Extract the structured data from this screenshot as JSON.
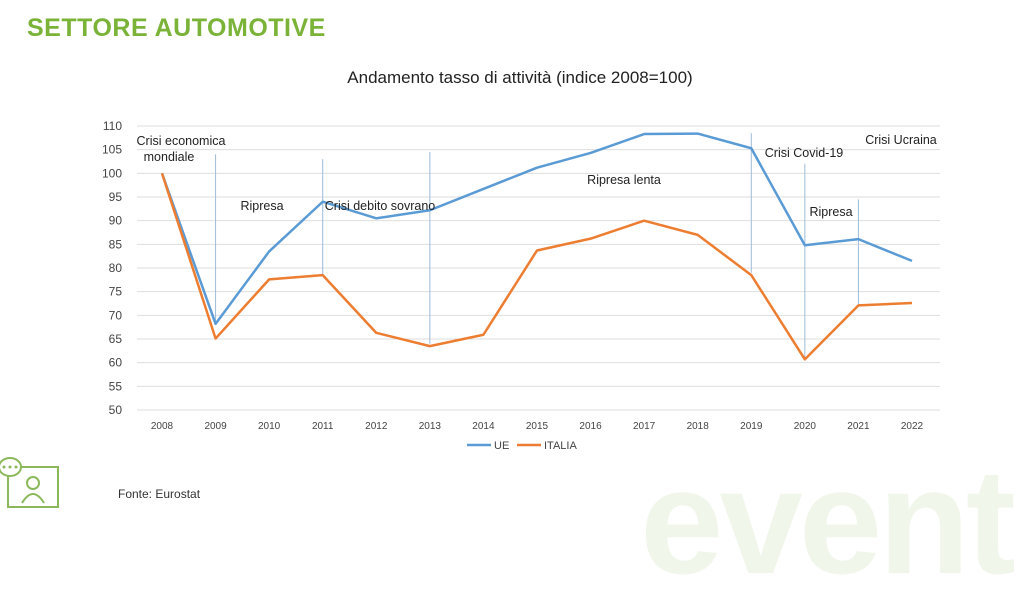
{
  "header": {
    "title": "SETTORE AUTOMOTIVE"
  },
  "watermark": "event",
  "source": "Fonte: Eurostat",
  "chart_data": {
    "type": "line",
    "title": "Andamento tasso di attività (indice 2008=100)",
    "xlabel": "",
    "ylabel": "",
    "categories": [
      "2008",
      "2009",
      "2010",
      "2011",
      "2012",
      "2013",
      "2014",
      "2015",
      "2016",
      "2017",
      "2018",
      "2019",
      "2020",
      "2021",
      "2022"
    ],
    "ylim": [
      50,
      110
    ],
    "yticks": [
      50,
      55,
      60,
      65,
      70,
      75,
      80,
      85,
      90,
      95,
      100,
      105,
      110
    ],
    "grid": true,
    "legend": "bottom",
    "series": [
      {
        "name": "UE",
        "color": "#5b9bd5",
        "values": [
          100,
          68.2,
          83.5,
          94,
          90.5,
          92.2,
          96.7,
          101.2,
          104.3,
          108.3,
          108.4,
          105.3,
          84.8,
          86.1,
          81.5
        ]
      },
      {
        "name": "ITALIA",
        "color": "#ed7d31",
        "values": [
          100,
          65.1,
          77.6,
          78.5,
          66.3,
          63.5,
          65.9,
          83.7,
          86.2,
          90,
          87,
          78.5,
          60.7,
          72.1,
          72.6
        ]
      }
    ],
    "annotations": [
      {
        "text": "Crisi economica",
        "text2": "mondiale",
        "year": "2008"
      },
      {
        "text": "Ripresa",
        "year": "2009"
      },
      {
        "text": "Crisi debito sovrano",
        "year": "2011"
      },
      {
        "text": "Ripresa lenta",
        "year": "2015"
      },
      {
        "text": "Crisi Covid-19",
        "year": "2019"
      },
      {
        "text": "Ripresa",
        "year": "2020"
      },
      {
        "text": "Crisi Ucraina",
        "year": "2022"
      }
    ],
    "markers": [
      {
        "year": "2009",
        "top": 104,
        "bottom": 68
      },
      {
        "year": "2011",
        "top": 103,
        "bottom": 78.5
      },
      {
        "year": "2013",
        "top": 104.5,
        "bottom": 64
      },
      {
        "year": "2019",
        "top": 108.5,
        "bottom": 79
      },
      {
        "year": "2020",
        "top": 102,
        "bottom": 61
      },
      {
        "year": "2021",
        "top": 94.5,
        "bottom": 72
      }
    ]
  }
}
